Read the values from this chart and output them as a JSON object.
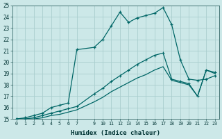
{
  "xlabel": "Humidex (Indice chaleur)",
  "bg_color": "#cce8e8",
  "grid_color": "#aacece",
  "line_color": "#006666",
  "xlim": [
    -0.5,
    23.5
  ],
  "ylim": [
    15,
    25
  ],
  "xticks": [
    0,
    1,
    2,
    3,
    4,
    5,
    6,
    7,
    9,
    10,
    11,
    12,
    13,
    14,
    15,
    16,
    17,
    18,
    19,
    20,
    21,
    22,
    23
  ],
  "yticks": [
    15,
    16,
    17,
    18,
    19,
    20,
    21,
    22,
    23,
    24,
    25
  ],
  "line1_x": [
    0,
    1,
    2,
    3,
    4,
    5,
    6,
    7,
    9,
    10,
    11,
    12,
    13,
    14,
    15,
    16,
    17,
    18,
    19,
    20,
    21,
    22,
    23
  ],
  "line1_y": [
    15.0,
    15.1,
    15.3,
    15.5,
    16.0,
    16.2,
    16.4,
    21.1,
    21.3,
    22.0,
    23.2,
    24.4,
    23.5,
    23.9,
    24.1,
    24.3,
    24.8,
    23.3,
    20.2,
    18.5,
    18.4,
    18.5,
    18.8
  ],
  "line2_x": [
    0,
    1,
    2,
    3,
    4,
    5,
    6,
    7,
    9,
    10,
    11,
    12,
    13,
    14,
    15,
    16,
    17,
    18,
    19,
    20,
    21,
    22,
    23
  ],
  "line2_y": [
    15.0,
    15.0,
    15.1,
    15.3,
    15.5,
    15.7,
    15.9,
    16.1,
    17.2,
    17.7,
    18.3,
    18.8,
    19.3,
    19.8,
    20.2,
    20.6,
    20.8,
    18.5,
    18.3,
    18.1,
    17.0,
    19.3,
    19.1
  ],
  "line3_x": [
    0,
    1,
    2,
    3,
    4,
    5,
    6,
    7,
    9,
    10,
    11,
    12,
    13,
    14,
    15,
    16,
    17,
    18,
    19,
    20,
    21,
    22,
    23
  ],
  "line3_y": [
    15.0,
    15.0,
    15.0,
    15.1,
    15.3,
    15.4,
    15.6,
    15.8,
    16.5,
    16.9,
    17.4,
    17.8,
    18.2,
    18.6,
    18.9,
    19.3,
    19.6,
    18.4,
    18.2,
    18.0,
    17.0,
    19.3,
    19.0
  ]
}
